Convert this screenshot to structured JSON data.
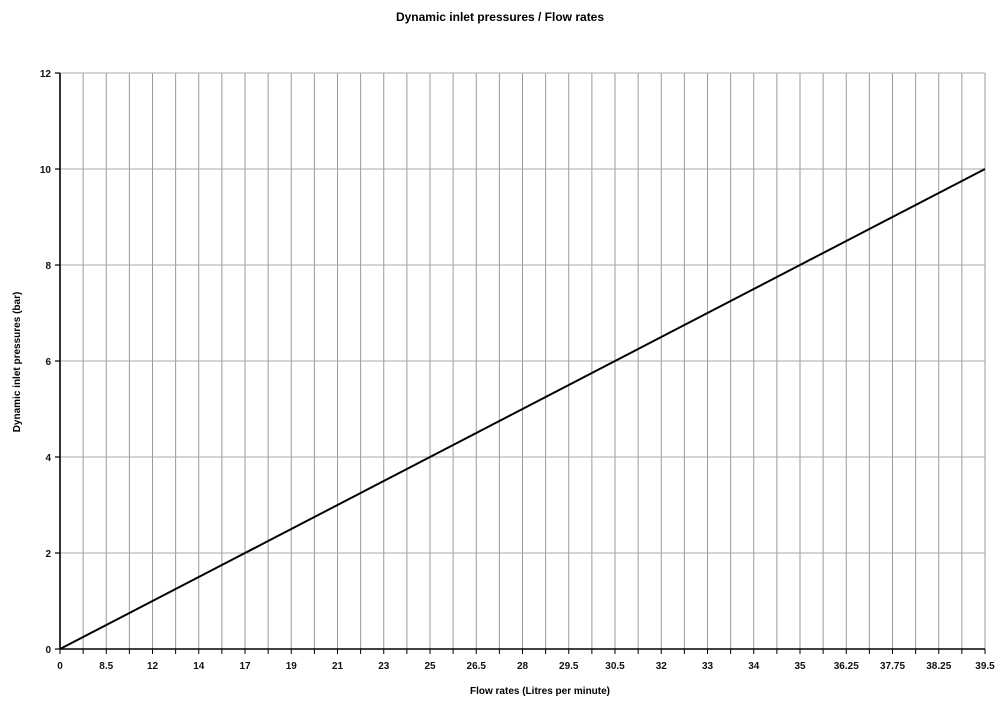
{
  "chart_data": {
    "type": "line",
    "title": "Dynamic inlet pressures / Flow rates",
    "xlabel": "Flow rates (Litres per minute)",
    "ylabel": "Dynamic inlet pressures (bar)",
    "categories": [
      "0",
      "",
      "8.5",
      "",
      "12",
      "",
      "14",
      "",
      "17",
      "",
      "19",
      "",
      "21",
      "",
      "23",
      "",
      "25",
      "",
      "26.5",
      "",
      "28",
      "",
      "29.5",
      "",
      "30.5",
      "",
      "32",
      "",
      "33",
      "",
      "34",
      "",
      "35",
      "",
      "36.25",
      "",
      "37.75",
      "",
      "38.25",
      "",
      "39.5"
    ],
    "ylim": [
      0,
      12
    ],
    "yticks": [
      0,
      2,
      4,
      6,
      8,
      10,
      12
    ],
    "grid": true,
    "series": [
      {
        "values": [
          0,
          0.25,
          0.5,
          0.75,
          1,
          1.25,
          1.5,
          1.75,
          2,
          2.25,
          2.5,
          2.75,
          3,
          3.25,
          3.5,
          3.75,
          4,
          4.25,
          4.5,
          4.75,
          5,
          5.25,
          5.5,
          5.75,
          6,
          6.25,
          6.5,
          6.75,
          7,
          7.25,
          7.5,
          7.75,
          8,
          8.25,
          8.5,
          8.75,
          9,
          9.25,
          9.5,
          9.75,
          10
        ]
      }
    ]
  }
}
